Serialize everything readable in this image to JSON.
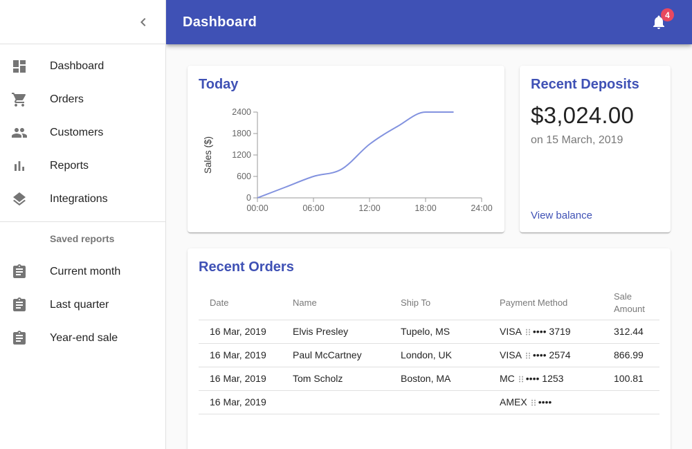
{
  "colors": {
    "appbar_bg": "#3f51b5",
    "primary": "#3f51b5",
    "badge_bg": "#e8485f",
    "chart_line": "#8292df",
    "content_bg": "#fafafa"
  },
  "appbar": {
    "title": "Dashboard",
    "notifications_count": "4"
  },
  "sidebar": {
    "items": [
      {
        "label": "Dashboard",
        "icon": "dashboard-icon"
      },
      {
        "label": "Orders",
        "icon": "shopping-cart-icon"
      },
      {
        "label": "Customers",
        "icon": "people-icon"
      },
      {
        "label": "Reports",
        "icon": "bar-chart-icon"
      },
      {
        "label": "Integrations",
        "icon": "layers-icon"
      }
    ],
    "subheader": "Saved reports",
    "saved_reports": [
      {
        "label": "Current month",
        "icon": "assignment-icon"
      },
      {
        "label": "Last quarter",
        "icon": "assignment-icon"
      },
      {
        "label": "Year-end sale",
        "icon": "assignment-icon"
      }
    ]
  },
  "chart_data": {
    "type": "line",
    "title": "Today",
    "xlabel": "",
    "ylabel": "Sales ($)",
    "x": [
      "00:00",
      "03:00",
      "06:00",
      "09:00",
      "12:00",
      "15:00",
      "18:00",
      "21:00"
    ],
    "values": [
      0,
      300,
      600,
      800,
      1500,
      2000,
      2400,
      2400
    ],
    "ylim": [
      0,
      2400
    ],
    "yticks": [
      0,
      600,
      1200,
      1800,
      2400
    ],
    "xticks": [
      "00:00",
      "06:00",
      "12:00",
      "18:00",
      "24:00"
    ],
    "x_domain": [
      "00:00",
      "24:00"
    ],
    "grid": false,
    "legend": false,
    "line_color": "#8292df"
  },
  "deposits_card": {
    "title": "Recent Deposits",
    "amount": "$3,024.00",
    "date": "on 15 March, 2019",
    "link": "View balance"
  },
  "orders_card": {
    "title": "Recent Orders",
    "columns": [
      "Date",
      "Name",
      "Ship To",
      "Payment Method",
      "Sale Amount"
    ],
    "rows": [
      {
        "date": "16 Mar, 2019",
        "name": "Elvis Presley",
        "ship_to": "Tupelo, MS",
        "payment_brand": "VISA",
        "payment_masked": "•••• 3719",
        "amount": "312.44"
      },
      {
        "date": "16 Mar, 2019",
        "name": "Paul McCartney",
        "ship_to": "London, UK",
        "payment_brand": "VISA",
        "payment_masked": "•••• 2574",
        "amount": "866.99"
      },
      {
        "date": "16 Mar, 2019",
        "name": "Tom Scholz",
        "ship_to": "Boston, MA",
        "payment_brand": "MC",
        "payment_masked": "•••• 1253",
        "amount": "100.81"
      },
      {
        "date": "16 Mar, 2019",
        "name": "",
        "ship_to": "",
        "payment_brand": "AMEX",
        "payment_masked": "••••",
        "amount": ""
      }
    ]
  }
}
